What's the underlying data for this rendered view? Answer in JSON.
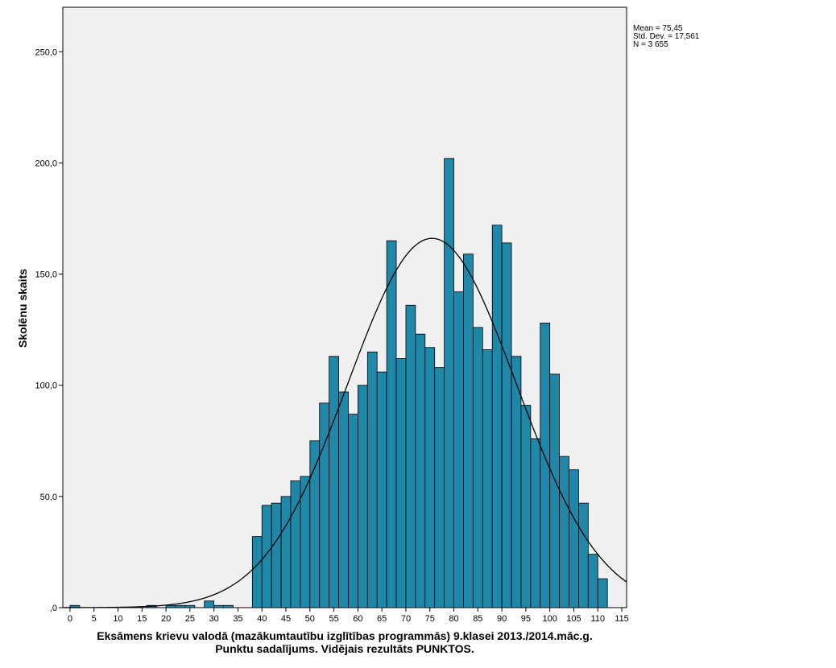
{
  "chart_data": {
    "type": "bar",
    "subtype": "histogram",
    "ylabel": "Skolēnu skaits",
    "xlabel_lines": [
      "Eksāmens krievu valodā (mazākumtautību izglītības programmās) 9.klasei 2013./2014.māc.g.",
      "Punktu sadalījums. Vidējais rezultāts PUNKTOS."
    ],
    "stats": [
      "Mean = 75,45",
      "Std. Dev. = 17,561",
      "N = 3 655"
    ],
    "bin_width": 2,
    "bins_start": [
      0,
      16,
      20,
      22,
      24,
      28,
      30,
      32,
      38,
      40,
      42,
      44,
      46,
      48,
      50,
      52,
      54,
      56,
      58,
      60,
      62,
      64,
      66,
      68,
      70,
      72,
      74,
      76,
      78,
      80,
      82,
      84,
      86,
      88,
      90,
      92,
      94,
      96,
      98,
      100,
      102,
      104,
      106,
      108,
      110
    ],
    "values": [
      1,
      1,
      1,
      1,
      1,
      3,
      1,
      1,
      32,
      46,
      47,
      50,
      57,
      59,
      75,
      92,
      113,
      97,
      87,
      100,
      115,
      106,
      165,
      112,
      136,
      123,
      117,
      108,
      202,
      142,
      159,
      126,
      116,
      172,
      164,
      113,
      91,
      76,
      128,
      105,
      68,
      62,
      47,
      24,
      13
    ],
    "normal_curve": {
      "mean": 75.45,
      "sd": 17.561,
      "n": 3655
    },
    "xlim": [
      -1.5,
      116
    ],
    "ylim": [
      0,
      270
    ],
    "x_ticks": [
      0,
      5,
      10,
      15,
      20,
      25,
      30,
      35,
      40,
      45,
      50,
      55,
      60,
      65,
      70,
      75,
      80,
      85,
      90,
      95,
      100,
      105,
      110,
      115
    ],
    "y_ticks": [
      0,
      50,
      100,
      150,
      200,
      250
    ],
    "y_tick_labels": [
      ",0",
      "50,0",
      "100,0",
      "150,0",
      "200,0",
      "250,0"
    ],
    "colors": {
      "bar": "#1f87a8",
      "bar_stroke": "#000000",
      "plot_bg": "#f0f0f0",
      "curve": "#000000"
    }
  }
}
